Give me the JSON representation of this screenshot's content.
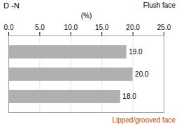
{
  "chart_data": {
    "type": "bar",
    "title": "D -N",
    "xlabel": "(%)",
    "orientation": "horizontal",
    "categories": [
      null,
      null,
      null
    ],
    "values": [
      19.0,
      20.0,
      18.0
    ],
    "value_labels": [
      "19.0",
      "20.0",
      "18.0"
    ],
    "data_labels": true,
    "color": "#b0b0b0",
    "xlim": [
      0,
      25.0
    ],
    "xticks": [
      {
        "value": 0.0,
        "label": "0.0"
      },
      {
        "value": 5.0,
        "label": "5.0"
      },
      {
        "value": 10.0,
        "label": "10.0"
      },
      {
        "value": 15.0,
        "label": "15.0"
      },
      {
        "value": 20.0,
        "label": "20.0"
      },
      {
        "value": 25.0,
        "label": "25.0"
      }
    ],
    "grid": true,
    "tick_labels": "x",
    "annotations": [
      {
        "text": "Flush face"
      },
      {
        "text": "Lipped/grooved face",
        "color": "#cc4400"
      }
    ]
  }
}
